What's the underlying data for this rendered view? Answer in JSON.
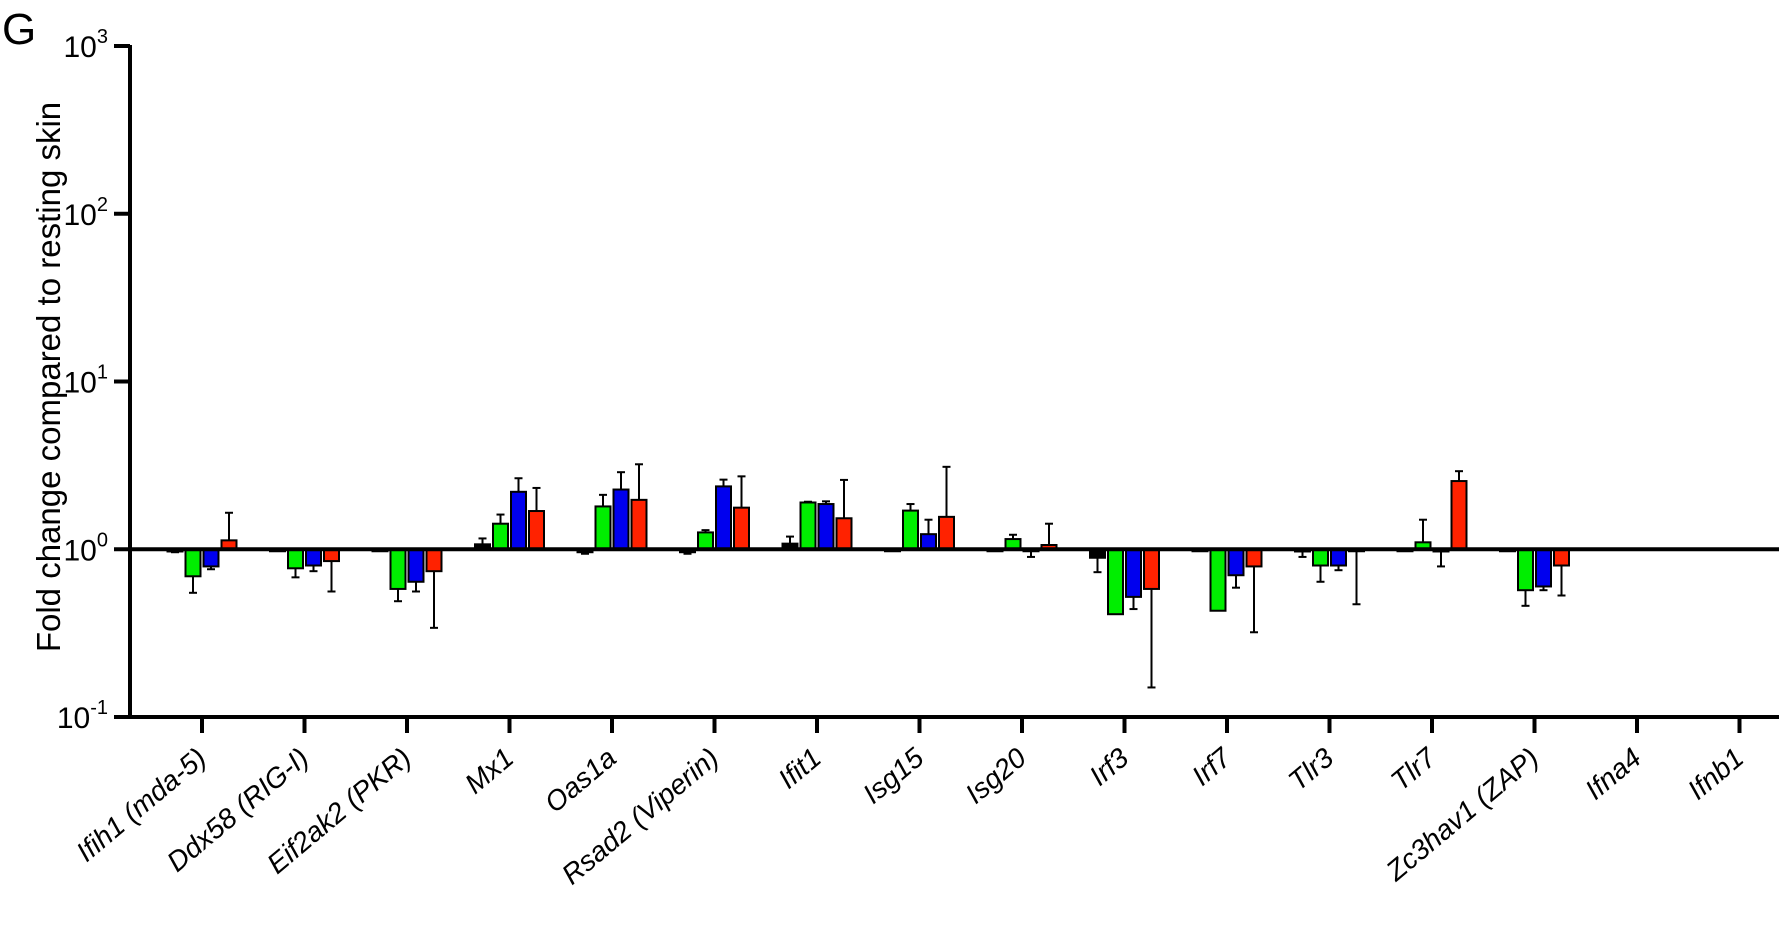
{
  "panel_label": "G",
  "chart_data": {
    "type": "bar",
    "title": "",
    "xlabel": "",
    "ylabel": "Fold change compared to resting skin",
    "yscale": "log",
    "ylim": [
      0.1,
      1000
    ],
    "yticks": [
      {
        "base": "10",
        "exp": "-1",
        "value": 0.1
      },
      {
        "base": "10",
        "exp": "0",
        "value": 1
      },
      {
        "base": "10",
        "exp": "1",
        "value": 10
      },
      {
        "base": "10",
        "exp": "2",
        "value": 100
      },
      {
        "base": "10",
        "exp": "3",
        "value": 1000
      }
    ],
    "baseline": 1,
    "grid": false,
    "legend": "none",
    "categories": [
      "Ifih1 (mda-5)",
      "Ddx58 (RIG-I)",
      "Eif2ak2 (PKR)",
      "Mx1",
      "Oas1a",
      "Rsad2 (Viperin)",
      "Ifit1",
      "Isg15",
      "Isg20",
      "Irf3",
      "Irf7",
      "Tlr3",
      "Tlr7",
      "Zc3hav1 (ZAP)",
      "Ifna4",
      "Ifnb1"
    ],
    "series": [
      {
        "color": "#000000",
        "values": [
          0.97,
          1.0,
          1.0,
          1.07,
          0.96,
          0.96,
          1.08,
          1.0,
          1.0,
          0.89,
          1.0,
          0.97,
          1.0,
          1.0,
          null,
          null
        ],
        "errors": [
          0.96,
          null,
          null,
          1.16,
          0.94,
          0.94,
          1.19,
          null,
          null,
          0.73,
          null,
          0.9,
          null,
          null,
          null,
          null
        ]
      },
      {
        "color": "#00ee00",
        "values": [
          0.69,
          0.77,
          0.58,
          1.42,
          1.8,
          1.26,
          1.9,
          1.7,
          1.15,
          0.41,
          0.43,
          0.8,
          1.1,
          0.57,
          null,
          null
        ],
        "errors": [
          0.55,
          0.68,
          0.49,
          1.61,
          2.11,
          1.3,
          1.92,
          1.86,
          1.22,
          0.42,
          0.44,
          0.64,
          1.5,
          0.46,
          null,
          null
        ]
      },
      {
        "color": "#0000ee",
        "values": [
          0.79,
          0.8,
          0.64,
          2.2,
          2.27,
          2.37,
          1.86,
          1.23,
          0.98,
          0.52,
          0.7,
          0.8,
          0.97,
          0.6,
          null,
          null
        ],
        "errors": [
          0.76,
          0.74,
          0.56,
          2.65,
          2.88,
          2.6,
          1.93,
          1.5,
          0.9,
          0.44,
          0.59,
          0.75,
          0.79,
          0.57,
          null,
          null
        ]
      },
      {
        "color": "#ff2200",
        "values": [
          1.13,
          0.85,
          0.74,
          1.69,
          1.97,
          1.77,
          1.53,
          1.56,
          1.06,
          0.58,
          0.79,
          0.99,
          2.55,
          0.8,
          null,
          null
        ],
        "errors": [
          1.65,
          0.56,
          0.34,
          2.32,
          3.21,
          2.72,
          2.59,
          3.1,
          1.42,
          0.15,
          0.32,
          0.47,
          2.92,
          0.53,
          null,
          null
        ]
      }
    ]
  }
}
